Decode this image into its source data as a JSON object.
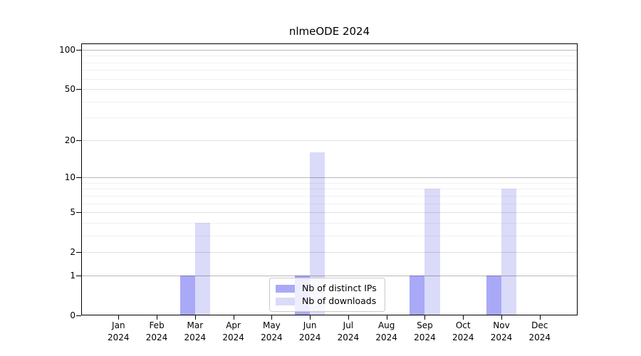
{
  "chart_data": {
    "type": "bar",
    "title": "nlmeODE 2024",
    "months": [
      "Jan",
      "Feb",
      "Mar",
      "Apr",
      "May",
      "Jun",
      "Jul",
      "Aug",
      "Sep",
      "Oct",
      "Nov",
      "Dec"
    ],
    "year": "2024",
    "series": [
      {
        "name": "Nb of distinct IPs",
        "color": "#a9a9f7",
        "values": [
          0,
          0,
          1,
          0,
          0,
          1,
          0,
          0,
          1,
          0,
          1,
          0
        ]
      },
      {
        "name": "Nb of downloads",
        "color": "#dadaf9",
        "values": [
          0,
          0,
          4,
          0,
          0,
          16,
          0,
          0,
          8,
          0,
          8,
          0
        ]
      }
    ],
    "yscale": "log1p",
    "ylim": [
      0,
      100
    ],
    "yticks": [
      0,
      1,
      2,
      5,
      10,
      20,
      50,
      100
    ],
    "yticks_emphasized": [
      1,
      10,
      100
    ],
    "yticks_minor": [
      3,
      4,
      6,
      7,
      8,
      9,
      30,
      40,
      60,
      70,
      80,
      90
    ],
    "grid": true,
    "legend_position": "bottom-center",
    "axis_color": "#000000",
    "background_color": "#ffffff"
  }
}
